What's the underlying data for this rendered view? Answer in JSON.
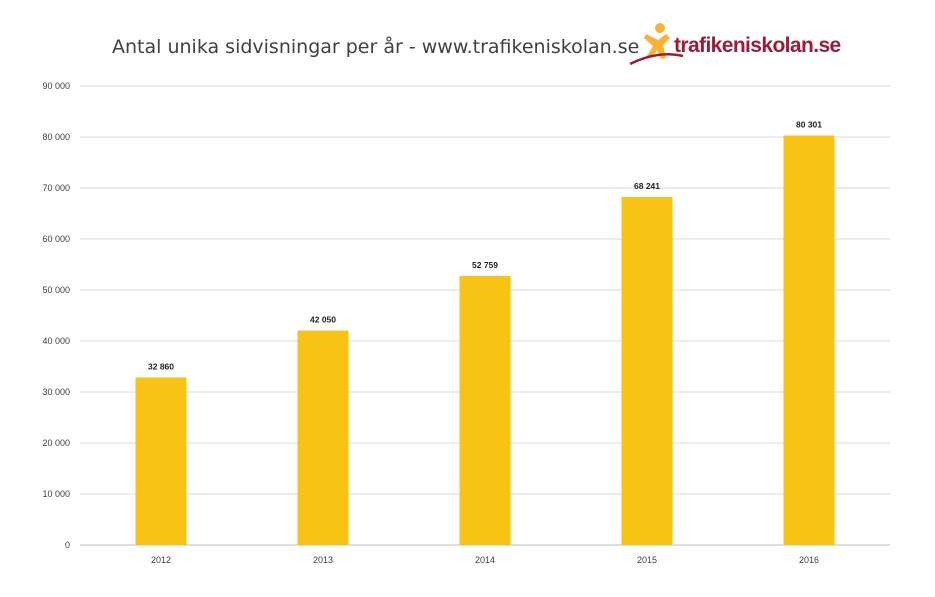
{
  "chart_data": {
    "type": "bar",
    "title": "Antal unika sidvisningar per år - www.trafikeniskolan.se",
    "categories": [
      "2012",
      "2013",
      "2014",
      "2015",
      "2016"
    ],
    "values": [
      32860,
      42050,
      52759,
      68241,
      80301
    ],
    "data_labels": [
      "32 860",
      "42 050",
      "52 759",
      "68 241",
      "80 301"
    ],
    "ylim": [
      0,
      90000
    ],
    "yticks": [
      0,
      10000,
      20000,
      30000,
      40000,
      50000,
      60000,
      70000,
      80000,
      90000
    ],
    "ytick_labels": [
      "0",
      "10 000",
      "20 000",
      "30 000",
      "40 000",
      "50 000",
      "60 000",
      "70 000",
      "80 000",
      "90 000"
    ],
    "grid": true,
    "bar_color": "#f9c316"
  },
  "logo": {
    "text": "trafikeniskolan.se",
    "color": "#9b1b3c",
    "figure_color": "#f9b233"
  }
}
